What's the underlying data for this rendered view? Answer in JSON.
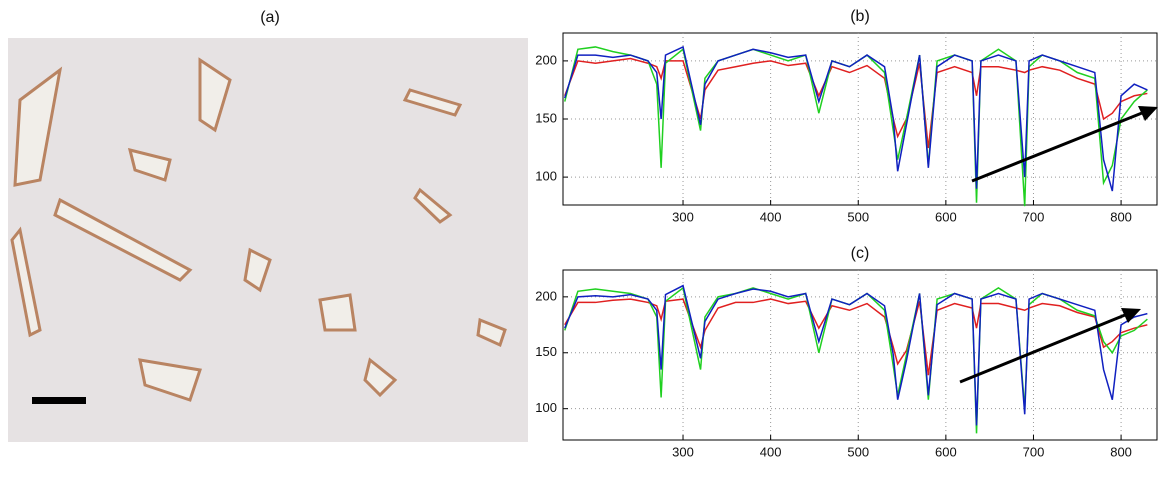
{
  "image_panel": {
    "title": "(a)"
  },
  "chart_data": [
    {
      "type": "line",
      "title": "(b)",
      "x": [
        165,
        180,
        200,
        220,
        240,
        260,
        270,
        275,
        280,
        300,
        320,
        325,
        340,
        360,
        380,
        400,
        420,
        440,
        455,
        470,
        490,
        510,
        530,
        540,
        545,
        555,
        570,
        580,
        590,
        610,
        630,
        635,
        640,
        660,
        680,
        690,
        695,
        710,
        730,
        750,
        770,
        780,
        790,
        800,
        815,
        830
      ],
      "xlim": [
        163,
        841
      ],
      "xticks": [
        300,
        400,
        500,
        600,
        700,
        800
      ],
      "ylim": [
        76,
        224
      ],
      "yticks": [
        100,
        150,
        200
      ],
      "grid": true,
      "series": [
        {
          "color": "#e02020",
          "values": [
            170,
            200,
            198,
            200,
            202,
            198,
            195,
            185,
            200,
            200,
            150,
            175,
            192,
            195,
            198,
            200,
            196,
            198,
            170,
            195,
            190,
            196,
            185,
            150,
            135,
            150,
            198,
            125,
            190,
            195,
            190,
            170,
            195,
            195,
            192,
            190,
            192,
            195,
            192,
            185,
            180,
            150,
            155,
            165,
            170,
            172
          ]
        },
        {
          "color": "#20d020",
          "values": [
            165,
            210,
            212,
            208,
            205,
            200,
            180,
            108,
            198,
            210,
            140,
            185,
            200,
            205,
            210,
            205,
            200,
            205,
            155,
            200,
            195,
            205,
            190,
            140,
            115,
            150,
            205,
            110,
            200,
            205,
            200,
            78,
            200,
            210,
            200,
            75,
            195,
            205,
            200,
            190,
            185,
            95,
            110,
            150,
            165,
            175
          ]
        },
        {
          "color": "#1020c0",
          "values": [
            168,
            205,
            205,
            203,
            205,
            200,
            190,
            150,
            205,
            212,
            145,
            180,
            200,
            205,
            210,
            207,
            203,
            205,
            165,
            200,
            195,
            205,
            195,
            150,
            105,
            145,
            205,
            108,
            195,
            205,
            200,
            90,
            200,
            205,
            200,
            100,
            200,
            205,
            200,
            195,
            190,
            115,
            88,
            170,
            180,
            175
          ]
        }
      ]
    },
    {
      "type": "line",
      "title": "(c)",
      "x": [
        165,
        180,
        200,
        220,
        240,
        260,
        270,
        275,
        280,
        300,
        320,
        325,
        340,
        360,
        380,
        400,
        420,
        440,
        455,
        470,
        490,
        510,
        530,
        540,
        545,
        555,
        570,
        580,
        590,
        610,
        630,
        635,
        640,
        660,
        680,
        690,
        695,
        710,
        730,
        750,
        770,
        780,
        790,
        800,
        815,
        830
      ],
      "xlim": [
        163,
        841
      ],
      "xticks": [
        300,
        400,
        500,
        600,
        700,
        800
      ],
      "ylim": [
        72,
        224
      ],
      "yticks": [
        100,
        150,
        200
      ],
      "grid": true,
      "series": [
        {
          "color": "#e02020",
          "values": [
            175,
            195,
            195,
            197,
            198,
            195,
            192,
            180,
            196,
            198,
            155,
            170,
            190,
            195,
            195,
            198,
            194,
            196,
            172,
            192,
            188,
            194,
            182,
            155,
            140,
            152,
            196,
            130,
            188,
            194,
            190,
            172,
            194,
            194,
            190,
            188,
            190,
            194,
            192,
            186,
            182,
            155,
            160,
            168,
            172,
            175
          ]
        },
        {
          "color": "#20d020",
          "values": [
            170,
            205,
            207,
            205,
            203,
            198,
            182,
            110,
            196,
            208,
            135,
            182,
            200,
            203,
            208,
            203,
            198,
            203,
            150,
            198,
            193,
            203,
            188,
            138,
            112,
            148,
            203,
            108,
            198,
            203,
            198,
            78,
            198,
            208,
            198,
            100,
            193,
            203,
            198,
            188,
            183,
            160,
            150,
            165,
            170,
            180
          ]
        },
        {
          "color": "#1020c0",
          "values": [
            172,
            200,
            201,
            200,
            202,
            198,
            188,
            135,
            202,
            210,
            145,
            178,
            198,
            203,
            207,
            205,
            200,
            203,
            160,
            198,
            193,
            203,
            192,
            148,
            108,
            143,
            203,
            112,
            193,
            203,
            198,
            85,
            198,
            203,
            198,
            95,
            198,
            203,
            198,
            193,
            188,
            135,
            108,
            175,
            182,
            185
          ]
        }
      ]
    }
  ]
}
